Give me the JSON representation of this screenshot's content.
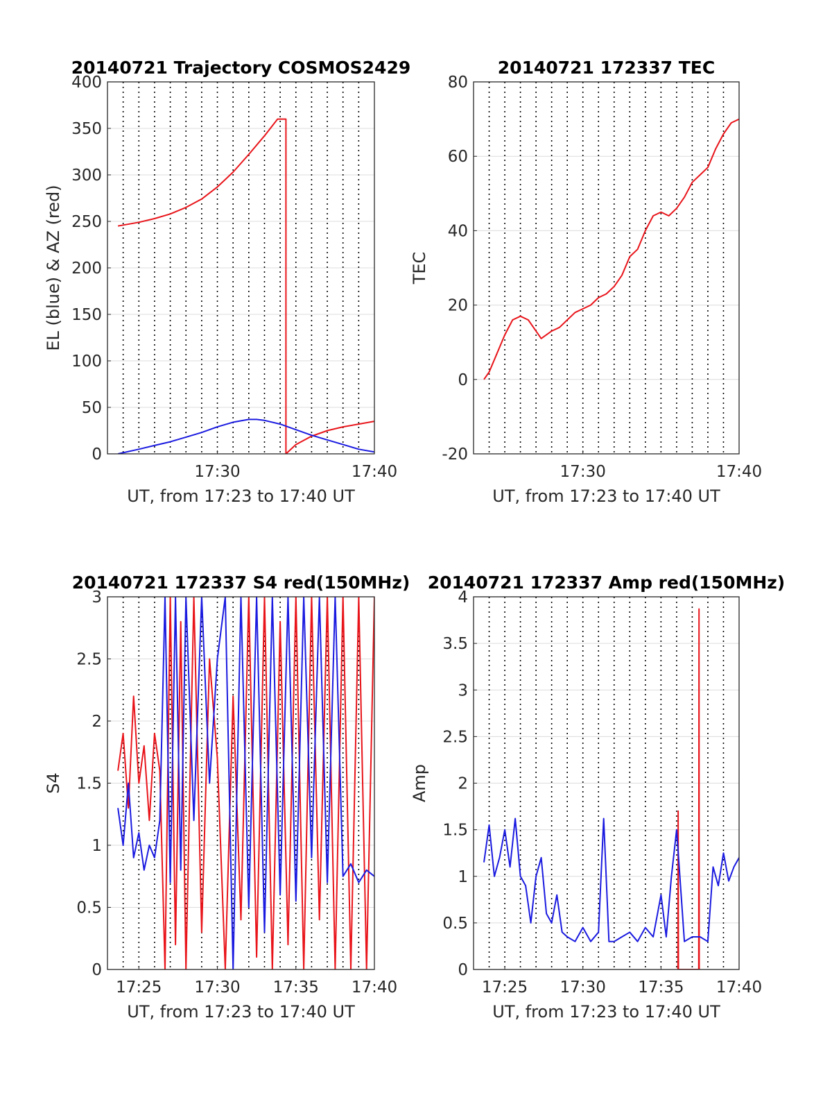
{
  "chart_data": [
    {
      "id": "traj",
      "type": "line",
      "title": "20140721 Trajectory COSMOS2429",
      "xlabel": "UT, from 17:23 to 17:40 UT",
      "ylabel": "EL (blue) & AZ (red)",
      "xlim": [
        "17:23:00",
        "17:40:00"
      ],
      "ylim": [
        0,
        400
      ],
      "yticks": [
        0,
        50,
        100,
        150,
        200,
        250,
        300,
        350,
        400
      ],
      "xticks": [
        "17:30",
        "17:40"
      ],
      "grid": true,
      "series": [
        {
          "color": "#e8141a",
          "x": [
            "17:23:40",
            "17:25:00",
            "17:26:00",
            "17:27:00",
            "17:28:00",
            "17:29:00",
            "17:30:00",
            "17:31:00",
            "17:32:00",
            "17:33:00",
            "17:33:50",
            "17:34:22",
            "17:34:22",
            "17:35:00",
            "17:36:00",
            "17:37:00",
            "17:38:00",
            "17:39:00",
            "17:40:00"
          ],
          "y": [
            245,
            249,
            253,
            258,
            265,
            274,
            287,
            303,
            322,
            342,
            360,
            360,
            0,
            10,
            19,
            25,
            29,
            32,
            35
          ]
        },
        {
          "color": "#1a1ae0",
          "x": [
            "17:23:40",
            "17:25:00",
            "17:26:00",
            "17:27:00",
            "17:28:00",
            "17:29:00",
            "17:30:00",
            "17:31:00",
            "17:32:00",
            "17:32:30",
            "17:33:00",
            "17:34:00",
            "17:35:00",
            "17:36:00",
            "17:37:00",
            "17:38:00",
            "17:39:00",
            "17:40:00"
          ],
          "y": [
            0,
            5,
            9,
            13,
            18,
            23,
            29,
            34,
            37,
            37,
            36,
            32,
            26,
            20,
            15,
            10,
            5,
            2
          ]
        }
      ]
    },
    {
      "id": "tec",
      "type": "line",
      "title": "20140721 172337 TEC",
      "xlabel": "UT, from 17:23 to 17:40 UT",
      "ylabel": "TEC",
      "xlim": [
        "17:23:00",
        "17:40:00"
      ],
      "ylim": [
        -20,
        80
      ],
      "yticks": [
        -20,
        0,
        20,
        40,
        60,
        80
      ],
      "xticks": [
        "17:30",
        "17:40"
      ],
      "grid": true,
      "series": [
        {
          "color": "#e8141a",
          "x": [
            "17:23:40",
            "17:24:00",
            "17:24:30",
            "17:25:00",
            "17:25:30",
            "17:26:00",
            "17:26:30",
            "17:27:00",
            "17:27:20",
            "17:28:00",
            "17:28:30",
            "17:29:00",
            "17:29:30",
            "17:30:00",
            "17:30:30",
            "17:31:00",
            "17:31:30",
            "17:32:00",
            "17:32:30",
            "17:33:00",
            "17:33:30",
            "17:34:00",
            "17:34:30",
            "17:35:00",
            "17:35:30",
            "17:36:00",
            "17:36:30",
            "17:37:00",
            "17:37:30",
            "17:38:00",
            "17:38:30",
            "17:39:00",
            "17:39:30",
            "17:40:00"
          ],
          "y": [
            0,
            2,
            7,
            12,
            16,
            17,
            16,
            13,
            11,
            13,
            14,
            16,
            18,
            19,
            20,
            22,
            23,
            25,
            28,
            33,
            35,
            40,
            44,
            45,
            44,
            46,
            49,
            53,
            55,
            57,
            62,
            66,
            69,
            70
          ]
        }
      ]
    },
    {
      "id": "s4",
      "type": "line",
      "title": "20140721 172337 S4 red(150MHz)",
      "xlabel": "UT, from 17:23 to 17:40 UT",
      "ylabel": "S4",
      "xlim": [
        "17:23:00",
        "17:40:00"
      ],
      "ylim": [
        0,
        3
      ],
      "yticks": [
        0,
        0.5,
        1,
        1.5,
        2,
        2.5,
        3
      ],
      "xticks": [
        "17:25",
        "17:30",
        "17:35",
        "17:40"
      ],
      "grid": true,
      "series": [
        {
          "color": "#e8141a",
          "x": [
            "17:23:40",
            "17:24:00",
            "17:24:20",
            "17:24:40",
            "17:25:00",
            "17:25:20",
            "17:25:40",
            "17:26:00",
            "17:26:20",
            "17:26:40",
            "17:27:00",
            "17:27:20",
            "17:27:40",
            "17:28:00",
            "17:28:30",
            "17:29:00",
            "17:29:30",
            "17:30:00",
            "17:30:30",
            "17:31:00",
            "17:31:30",
            "17:32:00",
            "17:32:30",
            "17:33:00",
            "17:33:30",
            "17:34:00",
            "17:34:30",
            "17:35:00",
            "17:35:30",
            "17:36:00",
            "17:36:30",
            "17:37:00",
            "17:37:30",
            "17:38:00",
            "17:38:30",
            "17:39:00",
            "17:39:30",
            "17:40:00"
          ],
          "y": [
            1.6,
            1.9,
            1.3,
            2.2,
            1.5,
            1.8,
            1.2,
            1.9,
            1.6,
            0,
            3,
            0.2,
            2.8,
            0,
            3,
            0.3,
            2.5,
            1.7,
            0,
            2.2,
            0.4,
            3,
            0.1,
            3,
            0,
            2.8,
            0.2,
            3,
            0,
            3,
            0.4,
            3,
            0,
            3,
            0,
            3,
            0,
            3
          ]
        },
        {
          "color": "#1a1ae0",
          "x": [
            "17:23:40",
            "17:24:00",
            "17:24:20",
            "17:24:40",
            "17:25:00",
            "17:25:20",
            "17:25:40",
            "17:26:00",
            "17:26:20",
            "17:26:40",
            "17:27:00",
            "17:27:20",
            "17:27:40",
            "17:28:00",
            "17:28:30",
            "17:29:00",
            "17:29:30",
            "17:30:00",
            "17:30:30",
            "17:31:00",
            "17:31:30",
            "17:32:00",
            "17:32:30",
            "17:33:00",
            "17:33:30",
            "17:34:00",
            "17:34:30",
            "17:35:00",
            "17:35:30",
            "17:36:00",
            "17:36:30",
            "17:37:00",
            "17:37:30",
            "17:38:00",
            "17:38:30",
            "17:39:00",
            "17:39:30",
            "17:40:00"
          ],
          "y": [
            1.3,
            1.0,
            1.5,
            0.9,
            1.1,
            0.8,
            1.0,
            0.9,
            1.2,
            3,
            0.7,
            3,
            0.8,
            3,
            1.2,
            3,
            1.5,
            2.5,
            3,
            0,
            3,
            0.5,
            3,
            0.3,
            3,
            0.6,
            3,
            0.55,
            3,
            0.9,
            3,
            0.7,
            3,
            0.75,
            0.85,
            0.7,
            0.8,
            0.75
          ]
        }
      ]
    },
    {
      "id": "amp",
      "type": "line",
      "title": "20140721 172337 Amp red(150MHz)",
      "xlabel": "UT, from 17:23 to 17:40 UT",
      "ylabel": "Amp",
      "xlim": [
        "17:23:00",
        "17:40:00"
      ],
      "ylim": [
        0,
        4
      ],
      "yticks": [
        0,
        0.5,
        1,
        1.5,
        2,
        2.5,
        3,
        3.5,
        4
      ],
      "xticks": [
        "17:25",
        "17:30",
        "17:35",
        "17:40"
      ],
      "grid": true,
      "series": [
        {
          "color": "#e8141a",
          "x": [
            "17:36:05",
            "17:36:06",
            "17:36:07",
            "17:37:25",
            "17:37:26",
            "17:37:27"
          ],
          "y": [
            0,
            1.7,
            0,
            0,
            3.87,
            0
          ]
        },
        {
          "color": "#1a1ae0",
          "x": [
            "17:23:40",
            "17:24:00",
            "17:24:20",
            "17:24:40",
            "17:25:00",
            "17:25:20",
            "17:25:40",
            "17:26:00",
            "17:26:20",
            "17:26:40",
            "17:27:00",
            "17:27:20",
            "17:27:40",
            "17:28:00",
            "17:28:20",
            "17:28:40",
            "17:29:00",
            "17:29:30",
            "17:30:00",
            "17:30:30",
            "17:31:00",
            "17:31:20",
            "17:31:40",
            "17:32:00",
            "17:32:30",
            "17:33:00",
            "17:33:30",
            "17:34:00",
            "17:34:30",
            "17:35:00",
            "17:35:20",
            "17:35:40",
            "17:36:00",
            "17:36:30",
            "17:37:00",
            "17:37:30",
            "17:38:00",
            "17:38:20",
            "17:38:40",
            "17:39:00",
            "17:39:20",
            "17:39:40",
            "17:40:00"
          ],
          "y": [
            1.15,
            1.55,
            1.0,
            1.2,
            1.5,
            1.1,
            1.62,
            1.0,
            0.9,
            0.5,
            1.0,
            1.2,
            0.6,
            0.5,
            0.8,
            0.4,
            0.35,
            0.3,
            0.45,
            0.3,
            0.4,
            1.62,
            0.3,
            0.3,
            0.35,
            0.4,
            0.3,
            0.45,
            0.35,
            0.8,
            0.35,
            1.0,
            1.5,
            0.3,
            0.35,
            0.35,
            0.3,
            1.1,
            0.9,
            1.25,
            0.95,
            1.1,
            1.2
          ]
        }
      ]
    }
  ]
}
